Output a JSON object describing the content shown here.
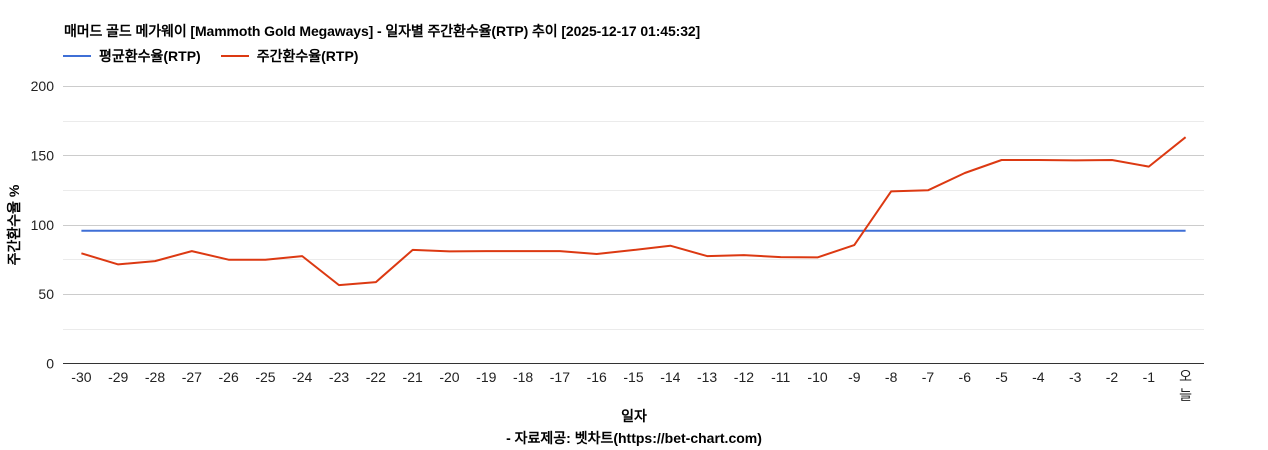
{
  "title": "매머드 골드 메가웨이 [Mammoth Gold Megaways] - 일자별 주간환수율(RTP) 추이 [2025-12-17 01:45:32]",
  "legend": [
    {
      "label": "평균환수율(RTP)",
      "color": "#3f6fd6"
    },
    {
      "label": "주간환수율(RTP)",
      "color": "#dc3912"
    }
  ],
  "xlabel": "일자",
  "ylabel": "주간환수율 %",
  "credit": "- 자료제공: 벳차트(https://bet-chart.com)",
  "chart_data": {
    "type": "line",
    "title": "매머드 골드 메가웨이 [Mammoth Gold Megaways] - 일자별 주간환수율(RTP) 추이 [2025-12-17 01:45:32]",
    "xlabel": "일자",
    "ylabel": "주간환수율 %",
    "ylim": [
      0,
      200
    ],
    "yticks": [
      0,
      50,
      100,
      150,
      200
    ],
    "grid": true,
    "legend_position": "top",
    "categories": [
      "-30",
      "-29",
      "-28",
      "-27",
      "-26",
      "-25",
      "-24",
      "-23",
      "-22",
      "-21",
      "-20",
      "-19",
      "-18",
      "-17",
      "-16",
      "-15",
      "-14",
      "-13",
      "-12",
      "-11",
      "-10",
      "-9",
      "-8",
      "-7",
      "-6",
      "-5",
      "-4",
      "-3",
      "-2",
      "-1",
      "오늘"
    ],
    "series": [
      {
        "name": "평균환수율(RTP)",
        "color": "#3f6fd6",
        "values": [
          95.7,
          95.7,
          95.7,
          95.7,
          95.7,
          95.7,
          95.7,
          95.7,
          95.7,
          95.7,
          95.7,
          95.7,
          95.7,
          95.7,
          95.7,
          95.7,
          95.7,
          95.7,
          95.7,
          95.7,
          95.7,
          95.7,
          95.7,
          95.7,
          95.7,
          95.7,
          95.7,
          95.7,
          95.7,
          95.7,
          95.7
        ]
      },
      {
        "name": "주간환수율(RTP)",
        "color": "#dc3912",
        "values": [
          79.4,
          71.4,
          73.8,
          81.0,
          74.8,
          74.8,
          77.4,
          56.5,
          58.7,
          81.9,
          80.8,
          81.0,
          81.0,
          81.0,
          78.9,
          81.8,
          84.9,
          77.4,
          78.1,
          76.7,
          76.5,
          85.3,
          124.0,
          124.8,
          137.3,
          146.7,
          146.7,
          146.4,
          146.7,
          141.9,
          163.1
        ]
      }
    ]
  }
}
